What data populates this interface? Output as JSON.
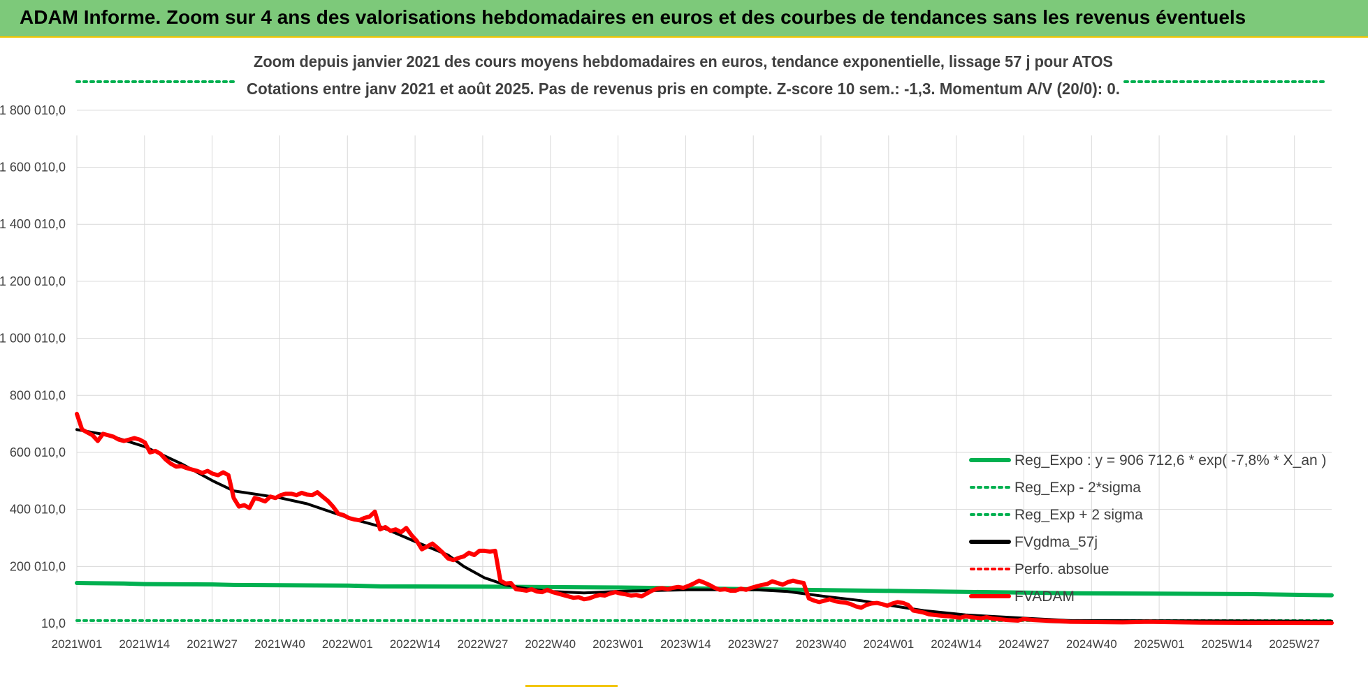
{
  "banner": {
    "title": "ADAM Informe. Zoom sur 4 ans des valorisations hebdomadaires en euros et des courbes de tendances sans les revenus éventuels"
  },
  "colors": {
    "banner_bg": "#7dc97a",
    "reg_expo": "#00b050",
    "fvgdma": "#000000",
    "fvadam": "#ff0000",
    "grid": "#d9d9d9"
  },
  "chart_data": {
    "type": "line",
    "title": "Zoom depuis janvier 2021 des cours moyens hebdomadaires en euros, tendance exponentielle, lissage 57 j pour ATOS",
    "subtitle": "Cotations entre janv 2021 et août 2025.  Pas de revenus pris en compte. Z-score 10 sem.: -1,3. Momentum A/V (20/0): 0.",
    "xlabel": "",
    "ylabel": "",
    "x_ticks": [
      "2021W01",
      "2021W14",
      "2021W27",
      "2021W40",
      "2022W01",
      "2022W14",
      "2022W27",
      "2022W40",
      "2023W01",
      "2023W14",
      "2023W27",
      "2023W40",
      "2024W01",
      "2024W14",
      "2024W27",
      "2024W40",
      "2025W01",
      "2025W14",
      "2025W27"
    ],
    "y_ticks": [
      "10,0",
      "200 010,0",
      "400 010,0",
      "600 010,0",
      "800 010,0",
      "1 000 010,0",
      "1 200 010,0",
      "1 400 010,0",
      "1 600 010,0",
      "1 800 010,0"
    ],
    "ylim": [
      10,
      1900010
    ],
    "grid": true,
    "legend_position": "right",
    "legend": [
      {
        "key": "reg_expo",
        "label": "Reg_Expo : y = 906 712,6 * exp( -7,8% *  X_an )",
        "style": "solid",
        "color": "#00b050"
      },
      {
        "key": "reg_minus",
        "label": "Reg_Exp - 2*sigma",
        "style": "dotted",
        "color": "#00b050"
      },
      {
        "key": "reg_plus",
        "label": "Reg_Exp + 2 sigma",
        "style": "dotted",
        "color": "#00b050"
      },
      {
        "key": "fvgdma",
        "label": "FVgdma_57j",
        "style": "solid",
        "color": "#000000"
      },
      {
        "key": "perfo",
        "label": "Perfo. absolue",
        "style": "dotted",
        "color": "#ff0000"
      },
      {
        "key": "fvadam",
        "label": "FVADAM",
        "style": "solid",
        "color": "#ff0000"
      }
    ],
    "series": [
      {
        "key": "reg_expo",
        "points": [
          [
            0,
            142000
          ],
          [
            9,
            140000
          ],
          [
            13,
            138000
          ],
          [
            26,
            137000
          ],
          [
            30,
            135000
          ],
          [
            52,
            133000
          ],
          [
            58,
            130000
          ],
          [
            78,
            129000
          ],
          [
            104,
            126000
          ],
          [
            130,
            120000
          ],
          [
            156,
            114000
          ],
          [
            182,
            108000
          ],
          [
            190,
            106000
          ],
          [
            224,
            103000
          ],
          [
            236,
            100000
          ],
          [
            240,
            99000
          ]
        ]
      },
      {
        "key": "reg_minus",
        "points": [
          [
            0,
            10000
          ],
          [
            240,
            10000
          ]
        ]
      },
      {
        "key": "reg_plus",
        "points": [
          [
            0,
            1900010
          ],
          [
            240,
            1900010
          ]
        ]
      },
      {
        "key": "fvgdma",
        "points": [
          [
            0,
            680000
          ],
          [
            6,
            660000
          ],
          [
            13,
            620000
          ],
          [
            20,
            560000
          ],
          [
            26,
            500000
          ],
          [
            30,
            465000
          ],
          [
            39,
            440000
          ],
          [
            44,
            420000
          ],
          [
            52,
            370000
          ],
          [
            58,
            340000
          ],
          [
            65,
            285000
          ],
          [
            71,
            240000
          ],
          [
            74,
            200000
          ],
          [
            78,
            160000
          ],
          [
            82,
            135000
          ],
          [
            86,
            122000
          ],
          [
            91,
            112000
          ],
          [
            97,
            107000
          ],
          [
            104,
            113000
          ],
          [
            117,
            118000
          ],
          [
            130,
            118000
          ],
          [
            136,
            112000
          ],
          [
            143,
            95000
          ],
          [
            150,
            80000
          ],
          [
            156,
            62000
          ],
          [
            162,
            45000
          ],
          [
            170,
            30000
          ],
          [
            182,
            18000
          ],
          [
            190,
            10000
          ],
          [
            240,
            8000
          ]
        ]
      },
      {
        "key": "fvadam",
        "points": [
          [
            0,
            735000
          ],
          [
            1,
            680000
          ],
          [
            2,
            670000
          ],
          [
            3,
            660000
          ],
          [
            4,
            640000
          ],
          [
            5,
            665000
          ],
          [
            6,
            660000
          ],
          [
            7,
            655000
          ],
          [
            8,
            645000
          ],
          [
            9,
            640000
          ],
          [
            10,
            645000
          ],
          [
            11,
            650000
          ],
          [
            12,
            645000
          ],
          [
            13,
            635000
          ],
          [
            14,
            600000
          ],
          [
            15,
            605000
          ],
          [
            16,
            595000
          ],
          [
            17,
            575000
          ],
          [
            18,
            560000
          ],
          [
            19,
            550000
          ],
          [
            20,
            552000
          ],
          [
            21,
            545000
          ],
          [
            22,
            540000
          ],
          [
            23,
            535000
          ],
          [
            24,
            528000
          ],
          [
            25,
            535000
          ],
          [
            26,
            525000
          ],
          [
            27,
            520000
          ],
          [
            28,
            530000
          ],
          [
            29,
            520000
          ],
          [
            30,
            440000
          ],
          [
            31,
            410000
          ],
          [
            32,
            415000
          ],
          [
            33,
            405000
          ],
          [
            34,
            440000
          ],
          [
            35,
            435000
          ],
          [
            36,
            428000
          ],
          [
            37,
            445000
          ],
          [
            38,
            440000
          ],
          [
            39,
            450000
          ],
          [
            40,
            455000
          ],
          [
            41,
            455000
          ],
          [
            42,
            450000
          ],
          [
            43,
            458000
          ],
          [
            44,
            452000
          ],
          [
            45,
            450000
          ],
          [
            46,
            460000
          ],
          [
            47,
            445000
          ],
          [
            48,
            430000
          ],
          [
            49,
            410000
          ],
          [
            50,
            385000
          ],
          [
            51,
            380000
          ],
          [
            52,
            370000
          ],
          [
            53,
            365000
          ],
          [
            54,
            362000
          ],
          [
            55,
            370000
          ],
          [
            56,
            375000
          ],
          [
            57,
            392000
          ],
          [
            58,
            330000
          ],
          [
            59,
            338000
          ],
          [
            60,
            325000
          ],
          [
            61,
            330000
          ],
          [
            62,
            320000
          ],
          [
            63,
            335000
          ],
          [
            64,
            310000
          ],
          [
            65,
            290000
          ],
          [
            66,
            260000
          ],
          [
            67,
            270000
          ],
          [
            68,
            280000
          ],
          [
            69,
            265000
          ],
          [
            70,
            248000
          ],
          [
            71,
            228000
          ],
          [
            72,
            222000
          ],
          [
            73,
            230000
          ],
          [
            74,
            235000
          ],
          [
            75,
            248000
          ],
          [
            76,
            240000
          ],
          [
            77,
            255000
          ],
          [
            78,
            255000
          ],
          [
            79,
            252000
          ],
          [
            80,
            255000
          ],
          [
            81,
            150000
          ],
          [
            82,
            140000
          ],
          [
            83,
            142000
          ],
          [
            84,
            120000
          ],
          [
            85,
            118000
          ],
          [
            86,
            115000
          ],
          [
            87,
            120000
          ],
          [
            88,
            112000
          ],
          [
            89,
            110000
          ],
          [
            90,
            118000
          ],
          [
            91,
            110000
          ],
          [
            92,
            105000
          ],
          [
            93,
            100000
          ],
          [
            94,
            95000
          ],
          [
            95,
            90000
          ],
          [
            96,
            92000
          ],
          [
            97,
            85000
          ],
          [
            98,
            88000
          ],
          [
            99,
            95000
          ],
          [
            100,
            100000
          ],
          [
            101,
            98000
          ],
          [
            102,
            105000
          ],
          [
            103,
            110000
          ],
          [
            104,
            105000
          ],
          [
            105,
            102000
          ],
          [
            106,
            98000
          ],
          [
            107,
            100000
          ],
          [
            108,
            95000
          ],
          [
            109,
            105000
          ],
          [
            110,
            115000
          ],
          [
            111,
            122000
          ],
          [
            112,
            124000
          ],
          [
            113,
            120000
          ],
          [
            114,
            125000
          ],
          [
            115,
            128000
          ],
          [
            116,
            125000
          ],
          [
            117,
            132000
          ],
          [
            118,
            140000
          ],
          [
            119,
            150000
          ],
          [
            120,
            143000
          ],
          [
            121,
            135000
          ],
          [
            122,
            125000
          ],
          [
            123,
            118000
          ],
          [
            124,
            120000
          ],
          [
            125,
            115000
          ],
          [
            126,
            115000
          ],
          [
            127,
            122000
          ],
          [
            128,
            118000
          ],
          [
            129,
            125000
          ],
          [
            130,
            130000
          ],
          [
            131,
            135000
          ],
          [
            132,
            138000
          ],
          [
            133,
            148000
          ],
          [
            134,
            142000
          ],
          [
            135,
            136000
          ],
          [
            136,
            145000
          ],
          [
            137,
            150000
          ],
          [
            138,
            145000
          ],
          [
            139,
            142000
          ],
          [
            140,
            88000
          ],
          [
            141,
            80000
          ],
          [
            142,
            75000
          ],
          [
            143,
            80000
          ],
          [
            144,
            85000
          ],
          [
            145,
            78000
          ],
          [
            146,
            75000
          ],
          [
            147,
            73000
          ],
          [
            148,
            68000
          ],
          [
            149,
            60000
          ],
          [
            150,
            55000
          ],
          [
            151,
            65000
          ],
          [
            152,
            70000
          ],
          [
            153,
            72000
          ],
          [
            154,
            68000
          ],
          [
            155,
            62000
          ],
          [
            156,
            70000
          ],
          [
            157,
            75000
          ],
          [
            158,
            72000
          ],
          [
            159,
            65000
          ],
          [
            160,
            45000
          ],
          [
            161,
            42000
          ],
          [
            162,
            38000
          ],
          [
            163,
            32000
          ],
          [
            164,
            30000
          ],
          [
            165,
            28000
          ],
          [
            166,
            26000
          ],
          [
            167,
            25000
          ],
          [
            168,
            22000
          ],
          [
            169,
            20000
          ],
          [
            170,
            25000
          ],
          [
            171,
            22000
          ],
          [
            172,
            20000
          ],
          [
            173,
            18000
          ],
          [
            174,
            22000
          ],
          [
            175,
            18000
          ],
          [
            176,
            16000
          ],
          [
            177,
            14000
          ],
          [
            178,
            12000
          ],
          [
            179,
            11000
          ],
          [
            180,
            10000
          ],
          [
            181,
            15000
          ],
          [
            182,
            14000
          ],
          [
            183,
            12000
          ],
          [
            184,
            11000
          ],
          [
            185,
            10000
          ],
          [
            186,
            9000
          ],
          [
            188,
            8000
          ],
          [
            190,
            6000
          ],
          [
            195,
            5000
          ],
          [
            200,
            4000
          ],
          [
            205,
            6000
          ],
          [
            208,
            5000
          ],
          [
            215,
            3000
          ],
          [
            225,
            2500
          ],
          [
            240,
            2000
          ]
        ]
      }
    ]
  }
}
